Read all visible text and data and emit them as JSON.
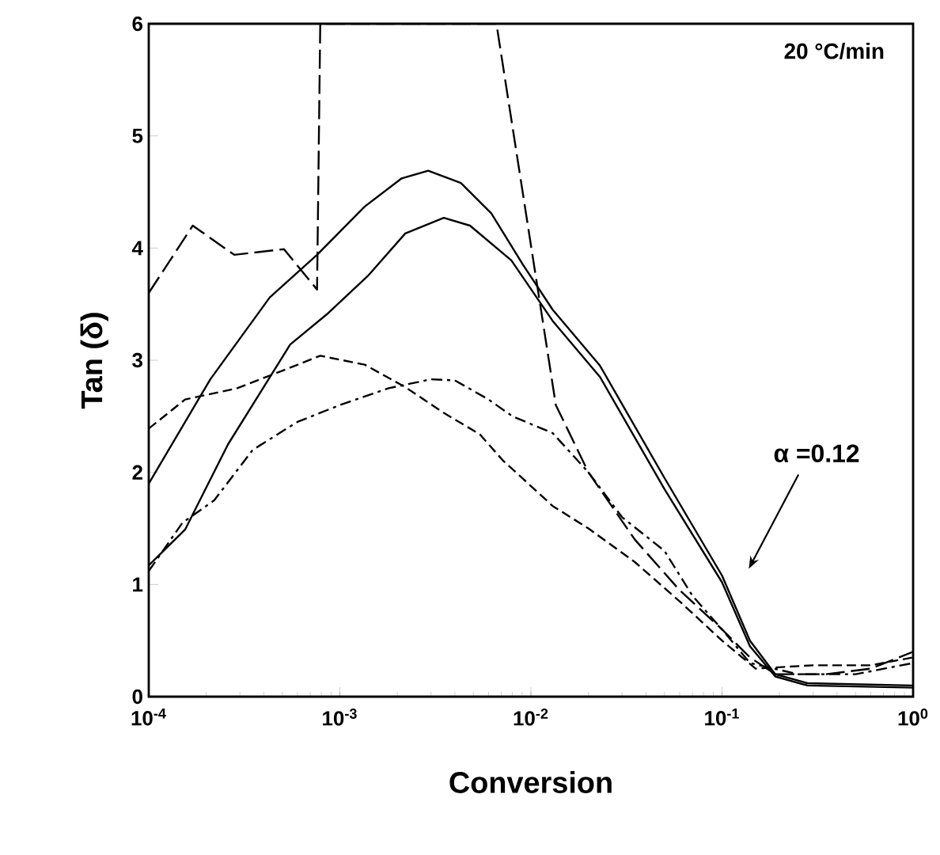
{
  "chart_data": {
    "type": "line",
    "xlabel": "Conversion",
    "ylabel": "Tan (δ)",
    "log": "x",
    "xlim": [
      0.0001,
      1
    ],
    "ylim": [
      0,
      6
    ],
    "xticks": [
      {
        "value": 0.0001,
        "label": "10$^{-4}$"
      },
      {
        "value": 0.001,
        "label": "10$^{-3}$"
      },
      {
        "value": 0.01,
        "label": "10$^{-2}$"
      },
      {
        "value": 0.1,
        "label": "10$^{-1}$"
      },
      {
        "value": 1,
        "label": "10$^{0}$"
      }
    ],
    "yticks": [
      0,
      1,
      2,
      3,
      4,
      5,
      6
    ],
    "grid": false,
    "annotations": [
      "20 °C/min",
      "α =0.12"
    ],
    "series": [
      {
        "color": "#000000",
        "line_style": "solid",
        "x": [
          0.0001,
          0.00021,
          0.00043,
          0.00076,
          0.00135,
          0.0021,
          0.0029,
          0.0043,
          0.0062,
          0.0091,
          0.013,
          0.023,
          0.05,
          0.1,
          0.14,
          0.19,
          0.28,
          1
        ],
        "values": [
          1.9,
          2.83,
          3.56,
          3.94,
          4.37,
          4.62,
          4.69,
          4.58,
          4.31,
          3.85,
          3.45,
          2.95,
          1.95,
          1.08,
          0.5,
          0.2,
          0.12,
          0.1
        ]
      },
      {
        "color": "#000000",
        "line_style": "solid",
        "x": [
          0.0001,
          0.000155,
          0.00026,
          0.00055,
          0.00087,
          0.0014,
          0.0022,
          0.0035,
          0.0048,
          0.0079,
          0.013,
          0.023,
          0.05,
          0.1,
          0.14,
          0.19,
          0.28,
          1
        ],
        "values": [
          1.17,
          1.49,
          2.25,
          3.14,
          3.42,
          3.75,
          4.13,
          4.27,
          4.2,
          3.89,
          3.35,
          2.85,
          1.85,
          1.02,
          0.45,
          0.18,
          0.1,
          0.08
        ]
      },
      {
        "color": "#000000",
        "line_style": "longdashed",
        "x": [
          0.0001,
          0.00017,
          0.00028,
          0.00051,
          0.00076,
          0.00079,
          0.0066,
          0.0135,
          0.02,
          0.035,
          0.06,
          0.1,
          0.14,
          0.19,
          0.35,
          0.6,
          1
        ],
        "values": [
          3.6,
          4.2,
          3.94,
          3.99,
          3.63,
          6,
          6,
          2.6,
          2.0,
          1.4,
          0.95,
          0.6,
          0.35,
          0.2,
          0.2,
          0.25,
          0.4
        ]
      },
      {
        "color": "#000000",
        "line_style": "dashed",
        "x": [
          0.0001,
          0.000155,
          0.00029,
          0.00049,
          0.00079,
          0.00135,
          0.0022,
          0.0035,
          0.0054,
          0.0071,
          0.013,
          0.02,
          0.035,
          0.06,
          0.1,
          0.15,
          0.3,
          0.6,
          1
        ],
        "values": [
          2.39,
          2.65,
          2.75,
          2.9,
          3.04,
          2.96,
          2.76,
          2.53,
          2.34,
          2.11,
          1.7,
          1.5,
          1.2,
          0.85,
          0.5,
          0.25,
          0.28,
          0.28,
          0.35
        ]
      },
      {
        "color": "#000000",
        "line_style": "dashdot",
        "x": [
          0.0001,
          0.00015,
          0.00022,
          0.00035,
          0.0006,
          0.001,
          0.0018,
          0.003,
          0.004,
          0.006,
          0.008,
          0.013,
          0.02,
          0.03,
          0.05,
          0.07,
          0.1,
          0.14,
          0.25,
          0.5,
          1
        ],
        "values": [
          1.12,
          1.55,
          1.75,
          2.2,
          2.45,
          2.6,
          2.75,
          2.83,
          2.82,
          2.65,
          2.5,
          2.35,
          2.0,
          1.6,
          1.3,
          0.9,
          0.6,
          0.3,
          0.2,
          0.2,
          0.3
        ]
      }
    ]
  }
}
